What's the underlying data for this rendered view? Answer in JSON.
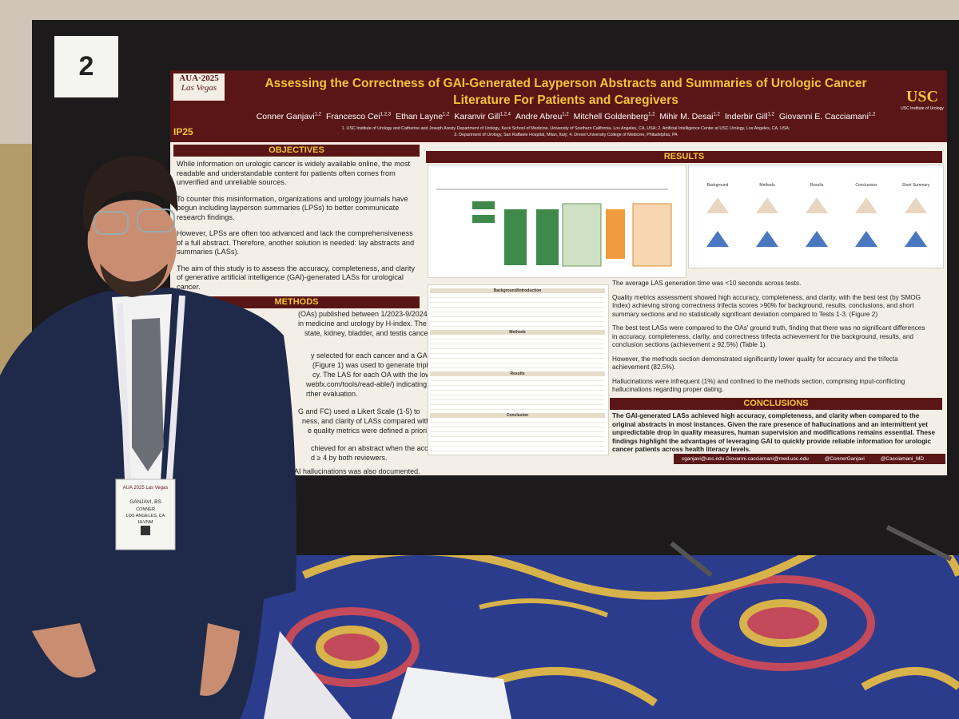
{
  "board_number": "2",
  "poster": {
    "conference_logo": {
      "line1": "AUA·2025",
      "line2": "Las Vegas"
    },
    "title": "Assessing the Correctness of GAI-Generated Layperson Abstracts and Summaries of Urologic Cancer Literature For Patients and Caregivers",
    "authors": [
      {
        "name": "Conner Ganjavi",
        "sup": "1,2"
      },
      {
        "name": "Francesco Cei",
        "sup": "1,2,3"
      },
      {
        "name": "Ethan Layne",
        "sup": "1,2"
      },
      {
        "name": "Karanvir Gill",
        "sup": "1,2,4"
      },
      {
        "name": "Andre Abreu",
        "sup": "1,2"
      },
      {
        "name": "Mitchell Goldenberg",
        "sup": "1,2"
      },
      {
        "name": "Mihir M. Desai",
        "sup": "1,2"
      },
      {
        "name": "Inderbir Gill",
        "sup": "1,2"
      },
      {
        "name": "Giovanni E. Cacciamani",
        "sup": "1,2"
      }
    ],
    "affiliations": [
      "1. USC Institute of Urology and Catherine and Joseph Aresty Department of Urology, Keck School of Medicine, University of Southern California, Los Angeles, CA, USA;   2. Artificial Intelligence Center at USC Urology, Los Angeles, CA, USA;",
      "3. Department of Urology, San Raffaele Hospital, Milan, Italy;   4. Drexel University College of Medicine, Philadelphia, PA"
    ],
    "poster_id": "IP25",
    "usc_logo": {
      "mark": "USC",
      "caption": "USC Institute of Urology"
    },
    "objectives": {
      "heading": "OBJECTIVES",
      "paragraphs": [
        "While information on urologic cancer is widely available online, the most readable and understandable content for patients often comes from unverified and unreliable sources.",
        "To counter this misinformation, organizations and urology journals have begun including layperson summaries (LPSs) to better communicate research findings.",
        "However, LPSs are often too advanced and lack the comprehensiveness of a full abstract. Therefore, another solution is needed: lay abstracts and summaries (LASs).",
        "The aim of this study is to assess the accuracy, completeness, and clarity of generative artificial intelligence (GAI)-generated LASs for urological cancer."
      ]
    },
    "methods": {
      "heading": "METHODS",
      "fragments": [
        "(OAs) published between 1/2023-9/2024 were extracted",
        "in medicine and urology by H-index. The OAs",
        "state, kidney, bladder, and testis cancer.",
        "y selected for each cancer and a GAI-pipeline",
        "(Figure 1) was used to generate triplicate",
        "cy. The LAS for each OA with the lowest",
        "webfx.com/tools/read-able/) indicating good",
        "rther evaluation.",
        "G and FC) used a Likert Scale (1-5) to",
        "ness, and clarity of LASs compared with",
        "e quality metrics were defined a priori.",
        "chieved for an abstract when the accuracy,",
        "d ≥ 4 by both reviewers.",
        "AI hallucinations was also documented."
      ]
    },
    "results": {
      "heading": "RESULTS",
      "figure_columns": [
        "Background",
        "Methods",
        "Results",
        "Conclusions",
        "Short Summary"
      ],
      "table_sections": [
        "Background/Introduction",
        "Methods",
        "Results",
        "Conclusion"
      ],
      "paragraphs": [
        "The average LAS generation time was <10 seconds across tests.",
        "Quality metrics assessment showed high accuracy, completeness, and clarity, with the best test (by SMOG Index) achieving strong correctness trifecta scores >90% for background, results, conclusions, and short summary sections and no statistically significant deviation compared to Tests 1-3. (Figure 2)",
        "The best test LASs were compared to the OAs' ground truth, finding that there was no significant differences in accuracy, completeness, clarity, and correctness trifecta achievement for the background, results, and conclusion sections (achievement ≥ 92.5%) (Table 1).",
        "However, the methods section demonstrated significantly lower quality for accuracy and the trifecta achievement (82.5%).",
        "Hallucinations were infrequent (1%) and confined to the methods section, comprising input-conflicting hallucinations regarding proper dating."
      ]
    },
    "conclusions": {
      "heading": "CONCLUSIONS",
      "text": "The GAI-generated LASs achieved high accuracy, completeness, and clarity when compared to the original abstracts in most instances. Given the rare presence of hallucinations and an intermittent yet unpredictable drop in quality measures, human supervision and modifications remains essential. These findings highlight the advantages of leveraging GAI to quickly provide reliable information for urologic cancer patients across health literacy levels."
    },
    "contacts": [
      "cganjavi@usc.edu Giovanni.cacciamani@med.usc.edu",
      "@ConnerGanjavi",
      "@Cacciamani_MD"
    ]
  },
  "badge": {
    "logo": "AUA 2025 Las Vegas",
    "name": "GANJAVI, BS",
    "first_name": "CONNER",
    "city": "LOS ANGELES, CA",
    "code": "HLVNM"
  }
}
